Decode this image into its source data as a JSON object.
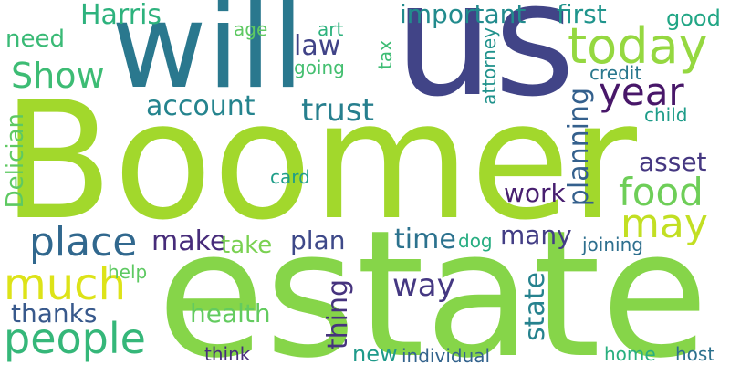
{
  "words": [
    {
      "text": "Boomer",
      "color": "#a2d82c"
    },
    {
      "text": "estate",
      "color": "#86d549"
    },
    {
      "text": "us",
      "color": "#414487"
    },
    {
      "text": "will",
      "color": "#2a788e"
    },
    {
      "text": "today",
      "color": "#95d840"
    },
    {
      "text": "year",
      "color": "#481769"
    },
    {
      "text": "people",
      "color": "#35b779"
    },
    {
      "text": "much",
      "color": "#dde318"
    },
    {
      "text": "place",
      "color": "#31688e"
    },
    {
      "text": "food",
      "color": "#6ece58"
    },
    {
      "text": "may",
      "color": "#c2df23"
    },
    {
      "text": "Show",
      "color": "#3dbc74"
    },
    {
      "text": "Harris",
      "color": "#2db27d"
    },
    {
      "text": "important",
      "color": "#228b8d"
    },
    {
      "text": "first",
      "color": "#1f948c"
    },
    {
      "text": "good",
      "color": "#21a685"
    },
    {
      "text": "need",
      "color": "#3aba76"
    },
    {
      "text": "age",
      "color": "#5ec962"
    },
    {
      "text": "art",
      "color": "#2db27d"
    },
    {
      "text": "law",
      "color": "#404387"
    },
    {
      "text": "going",
      "color": "#44bf70"
    },
    {
      "text": "tax",
      "color": "#3dbc74"
    },
    {
      "text": "attorney",
      "color": "#20928c"
    },
    {
      "text": "credit",
      "color": "#2a788e"
    },
    {
      "text": "account",
      "color": "#25848e"
    },
    {
      "text": "trust",
      "color": "#277f8e"
    },
    {
      "text": "planning",
      "color": "#34608d"
    },
    {
      "text": "child",
      "color": "#1e9c89"
    },
    {
      "text": "asset",
      "color": "#453781"
    },
    {
      "text": "Delician",
      "color": "#5ec962"
    },
    {
      "text": "card",
      "color": "#1f9e89"
    },
    {
      "text": "work",
      "color": "#481f70"
    },
    {
      "text": "make",
      "color": "#472c7a"
    },
    {
      "text": "take",
      "color": "#7ad151"
    },
    {
      "text": "plan",
      "color": "#3e4989"
    },
    {
      "text": "time",
      "color": "#2c728e"
    },
    {
      "text": "dog",
      "color": "#27ad81"
    },
    {
      "text": "many",
      "color": "#433e85"
    },
    {
      "text": "joining",
      "color": "#2e6f8e"
    },
    {
      "text": "thing",
      "color": "#46337e"
    },
    {
      "text": "way",
      "color": "#453882"
    },
    {
      "text": "state",
      "color": "#26828e"
    },
    {
      "text": "help",
      "color": "#5ec962"
    },
    {
      "text": "thanks",
      "color": "#38598c"
    },
    {
      "text": "health",
      "color": "#63cb5f"
    },
    {
      "text": "think",
      "color": "#472d7b"
    },
    {
      "text": "new",
      "color": "#1f9a8a"
    },
    {
      "text": "individual",
      "color": "#33638d"
    },
    {
      "text": "home",
      "color": "#29af7f"
    },
    {
      "text": "host",
      "color": "#2c718e"
    }
  ]
}
